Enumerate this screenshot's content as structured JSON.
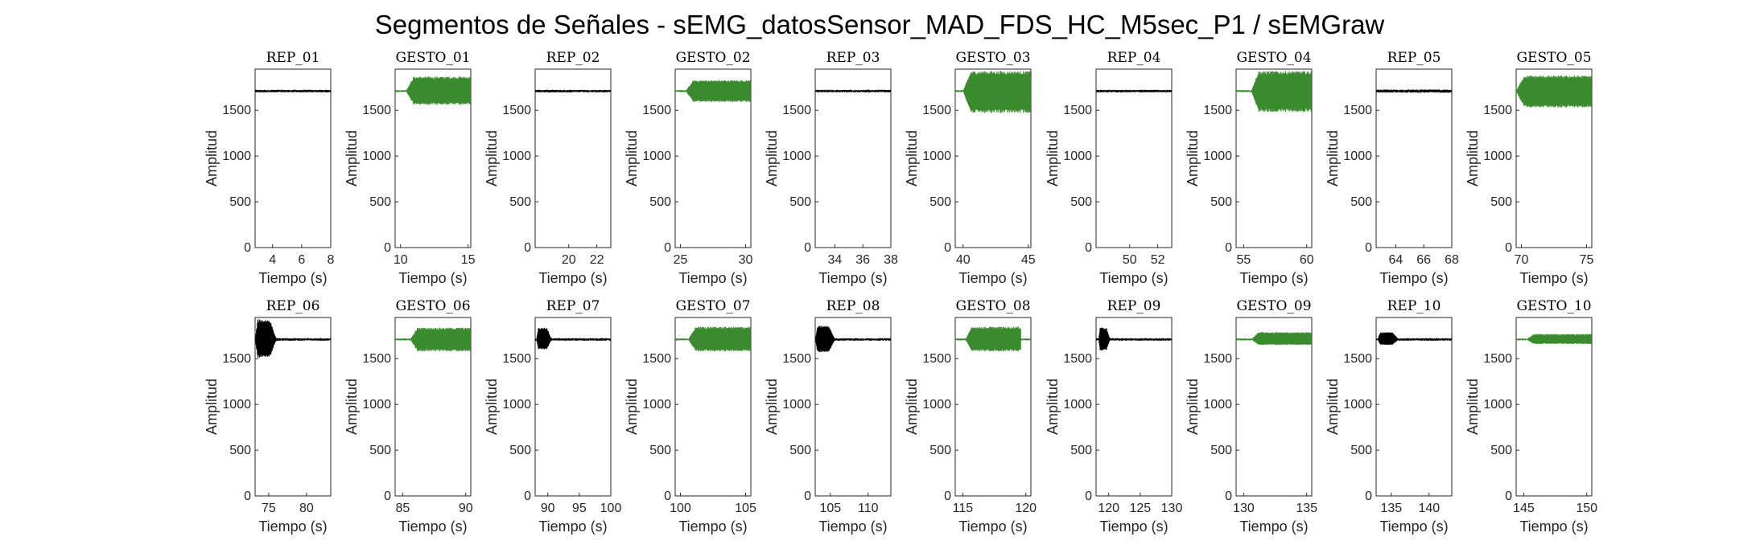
{
  "chart_data": {
    "type": "line",
    "title": "Segmentos de Señales - sEMG_datosSensor_MAD_FDS_HC_M5sec_P1 / sEMGraw",
    "xlabel": "Tiempo (s)",
    "ylabel": "Amplitud",
    "ylim": [
      0,
      1950
    ],
    "yticks": [
      0,
      500,
      1000,
      1500
    ],
    "grid": false,
    "colors": {
      "rep": "#000000",
      "gesto": "#3a8a2e"
    },
    "panels": [
      {
        "title": "REP_01",
        "kind": "rep",
        "xlim": [
          2.8,
          8.0
        ],
        "xticks": [
          4,
          6,
          8
        ],
        "baseline": 1710,
        "burst": {
          "start": 2.8,
          "end": 2.8,
          "min": 1710,
          "max": 1710
        },
        "noise": 15
      },
      {
        "title": "GESTO_01",
        "kind": "gesto",
        "xlim": [
          9.6,
          15.2
        ],
        "xticks": [
          10,
          15
        ],
        "baseline": 1710,
        "burst": {
          "start": 10.4,
          "end": 15.2,
          "min": 1560,
          "max": 1870
        },
        "noise": 12
      },
      {
        "title": "REP_02",
        "kind": "rep",
        "xlim": [
          17.6,
          23.0
        ],
        "xticks": [
          20,
          22
        ],
        "baseline": 1710,
        "burst": {
          "start": 17.6,
          "end": 17.6,
          "min": 1710,
          "max": 1710
        },
        "noise": 15
      },
      {
        "title": "GESTO_02",
        "kind": "gesto",
        "xlim": [
          24.6,
          30.4
        ],
        "xticks": [
          25,
          30
        ],
        "baseline": 1710,
        "burst": {
          "start": 25.4,
          "end": 30.4,
          "min": 1590,
          "max": 1830
        },
        "noise": 12
      },
      {
        "title": "REP_03",
        "kind": "rep",
        "xlim": [
          32.6,
          38.0
        ],
        "xticks": [
          34,
          36,
          38
        ],
        "baseline": 1710,
        "burst": {
          "start": 32.6,
          "end": 32.6,
          "min": 1710,
          "max": 1710
        },
        "noise": 15
      },
      {
        "title": "GESTO_03",
        "kind": "gesto",
        "xlim": [
          39.4,
          45.2
        ],
        "xticks": [
          40,
          45
        ],
        "baseline": 1710,
        "burst": {
          "start": 40.0,
          "end": 45.2,
          "min": 1470,
          "max": 1930
        },
        "noise": 12
      },
      {
        "title": "REP_04",
        "kind": "rep",
        "xlim": [
          47.6,
          53.0
        ],
        "xticks": [
          50,
          52
        ],
        "baseline": 1710,
        "burst": {
          "start": 47.6,
          "end": 47.6,
          "min": 1710,
          "max": 1710
        },
        "noise": 15
      },
      {
        "title": "GESTO_04",
        "kind": "gesto",
        "xlim": [
          54.4,
          60.4
        ],
        "xticks": [
          55,
          60
        ],
        "baseline": 1710,
        "burst": {
          "start": 55.6,
          "end": 60.4,
          "min": 1480,
          "max": 1930
        },
        "noise": 12
      },
      {
        "title": "REP_05",
        "kind": "rep",
        "xlim": [
          62.6,
          68.0
        ],
        "xticks": [
          64,
          66,
          68
        ],
        "baseline": 1710,
        "burst": {
          "start": 62.6,
          "end": 62.6,
          "min": 1710,
          "max": 1710
        },
        "noise": 18
      },
      {
        "title": "GESTO_05",
        "kind": "gesto",
        "xlim": [
          69.6,
          75.4
        ],
        "xticks": [
          70,
          75
        ],
        "baseline": 1710,
        "burst": {
          "start": 69.6,
          "end": 75.4,
          "min": 1530,
          "max": 1880
        },
        "noise": 12
      },
      {
        "title": "REP_06",
        "kind": "rep",
        "xlim": [
          73.2,
          83.2
        ],
        "xticks": [
          75,
          80
        ],
        "baseline": 1710,
        "burst": {
          "start": 73.2,
          "end": 76.0,
          "min": 1510,
          "max": 1930
        },
        "noise": 15
      },
      {
        "title": "GESTO_06",
        "kind": "gesto",
        "xlim": [
          84.4,
          90.4
        ],
        "xticks": [
          85,
          90
        ],
        "baseline": 1710,
        "burst": {
          "start": 85.6,
          "end": 90.4,
          "min": 1580,
          "max": 1840
        },
        "noise": 12
      },
      {
        "title": "REP_07",
        "kind": "rep",
        "xlim": [
          88.0,
          100.0
        ],
        "xticks": [
          90,
          95,
          100
        ],
        "baseline": 1710,
        "burst": {
          "start": 88.2,
          "end": 90.6,
          "min": 1600,
          "max": 1840
        },
        "noise": 15
      },
      {
        "title": "GESTO_07",
        "kind": "gesto",
        "xlim": [
          99.6,
          105.4
        ],
        "xticks": [
          100,
          105
        ],
        "baseline": 1710,
        "burst": {
          "start": 100.6,
          "end": 105.4,
          "min": 1580,
          "max": 1850
        },
        "noise": 12
      },
      {
        "title": "REP_08",
        "kind": "rep",
        "xlim": [
          103.0,
          113.0
        ],
        "xticks": [
          105,
          110
        ],
        "baseline": 1710,
        "burst": {
          "start": 103.0,
          "end": 105.6,
          "min": 1570,
          "max": 1860
        },
        "noise": 15
      },
      {
        "title": "GESTO_08",
        "kind": "gesto",
        "xlim": [
          114.4,
          120.4
        ],
        "xticks": [
          115,
          120
        ],
        "baseline": 1710,
        "burst": {
          "start": 115.2,
          "end": 119.6,
          "min": 1580,
          "max": 1850
        },
        "noise": 12
      },
      {
        "title": "REP_09",
        "kind": "rep",
        "xlim": [
          118.0,
          130.0
        ],
        "xticks": [
          120,
          125,
          130
        ],
        "baseline": 1710,
        "burst": {
          "start": 118.4,
          "end": 120.2,
          "min": 1590,
          "max": 1840
        },
        "noise": 15
      },
      {
        "title": "GESTO_09",
        "kind": "gesto",
        "xlim": [
          129.4,
          135.4
        ],
        "xticks": [
          130,
          135
        ],
        "baseline": 1710,
        "burst": {
          "start": 130.6,
          "end": 135.4,
          "min": 1650,
          "max": 1790
        },
        "noise": 12
      },
      {
        "title": "REP_10",
        "kind": "rep",
        "xlim": [
          133.0,
          143.0
        ],
        "xticks": [
          135,
          140
        ],
        "baseline": 1710,
        "burst": {
          "start": 133.2,
          "end": 136.0,
          "min": 1650,
          "max": 1790
        },
        "noise": 15
      },
      {
        "title": "GESTO_10",
        "kind": "gesto",
        "xlim": [
          144.4,
          150.4
        ],
        "xticks": [
          145,
          150
        ],
        "baseline": 1710,
        "burst": {
          "start": 145.2,
          "end": 150.4,
          "min": 1660,
          "max": 1770
        },
        "noise": 12
      }
    ]
  }
}
